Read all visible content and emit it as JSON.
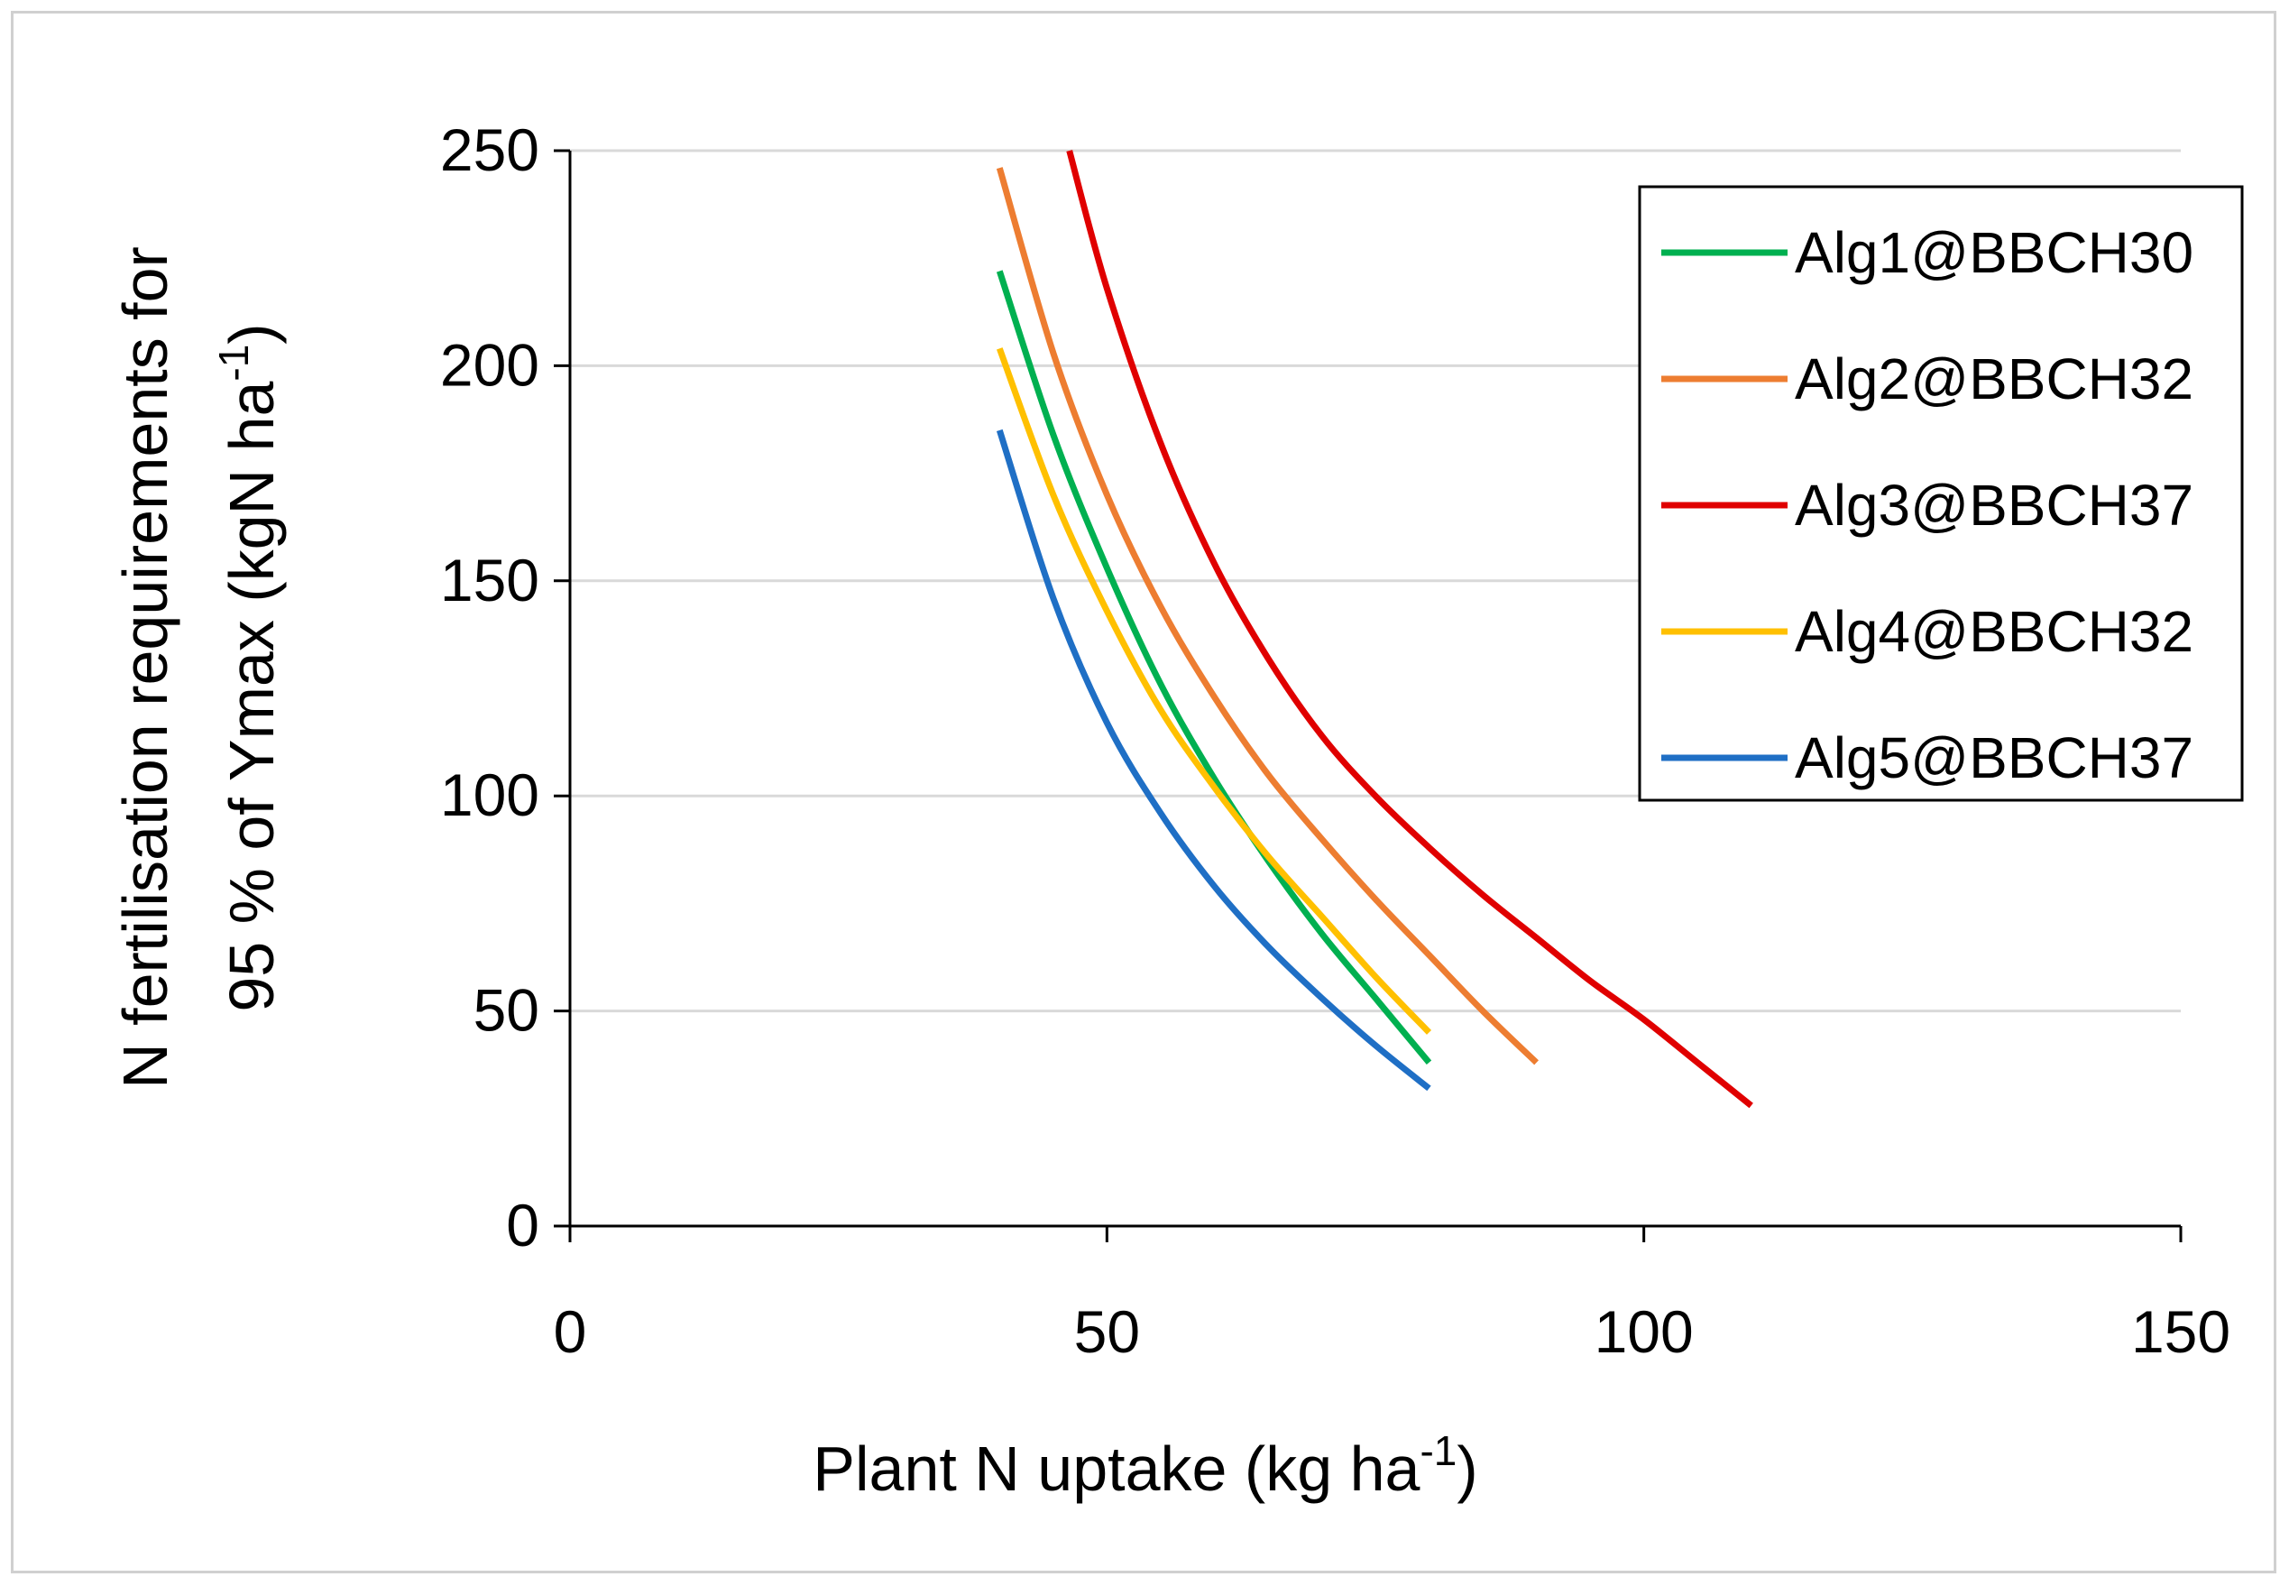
{
  "chart_data": {
    "type": "line",
    "title": "",
    "xlabel": "Plant N uptake (kg ha",
    "xlabel_sup": "-1",
    "xlabel_end": ")",
    "ylabel_line1": "N fertilisation requirements for",
    "ylabel_line2": "95 % of Ymax (kgN ha",
    "ylabel_sup": "-1",
    "ylabel_end": ")",
    "xlim": [
      0,
      150
    ],
    "ylim": [
      0,
      250
    ],
    "xticks": [
      "0",
      "50",
      "100",
      "150"
    ],
    "yticks": [
      "0",
      "50",
      "100",
      "150",
      "200",
      "250"
    ],
    "grid": "horizontal",
    "legend_position": "top-right",
    "series": [
      {
        "name": "Alg1@BBCH30",
        "color": "#00b050",
        "x": [
          40,
          45,
          50,
          55,
          60,
          65,
          70,
          75,
          80
        ],
        "y": [
          222,
          184,
          153,
          126,
          104,
          85,
          68,
          53,
          38
        ]
      },
      {
        "name": "Alg2@BBCH32",
        "color": "#ed7d31",
        "x": [
          40,
          45,
          50,
          55,
          60,
          65,
          70,
          75,
          80,
          85,
          90
        ],
        "y": [
          246,
          203,
          170,
          144,
          123,
          105,
          90,
          76,
          63,
          50,
          38
        ]
      },
      {
        "name": "Alg3@BBCH37",
        "color": "#e00000",
        "x": [
          46.5,
          50,
          55,
          60,
          65,
          70,
          75,
          80,
          85,
          90,
          95,
          100,
          105,
          110
        ],
        "y": [
          250,
          218,
          182,
          154,
          132,
          114,
          100,
          88,
          77,
          67,
          57,
          48,
          38,
          28
        ]
      },
      {
        "name": "Alg4@BBCH32",
        "color": "#ffc000",
        "x": [
          40,
          45,
          50,
          55,
          60,
          65,
          70,
          75,
          80
        ],
        "y": [
          204,
          170,
          143,
          120,
          102,
          86,
          72,
          58,
          45
        ]
      },
      {
        "name": "Alg5@BBCH37",
        "color": "#1f6fc5",
        "x": [
          40,
          45,
          50,
          55,
          60,
          65,
          70,
          75,
          80
        ],
        "y": [
          185,
          146,
          117,
          96,
          79,
          65,
          53,
          42,
          32
        ]
      }
    ]
  }
}
